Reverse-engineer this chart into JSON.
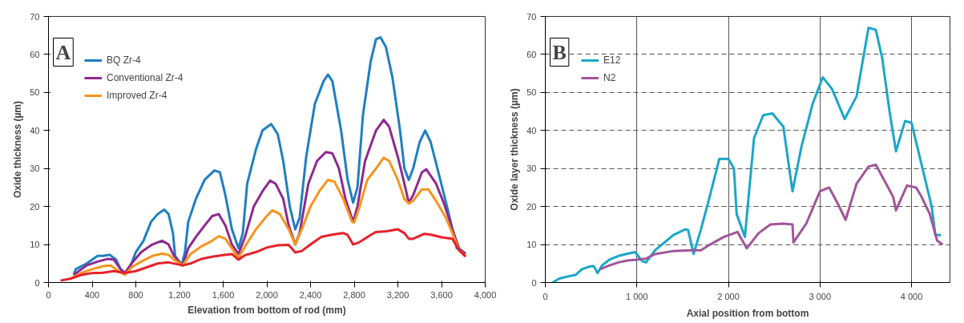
{
  "chart_data": [
    {
      "type": "line",
      "xlabel": "Elevation from bottom of rod (mm)",
      "ylabel": "Oxide thickness (µm)",
      "annotations": [
        "A"
      ],
      "xlim": [
        0,
        4000
      ],
      "ylim": [
        0,
        70
      ],
      "xticks": [
        0,
        {
          "value": 400,
          "label": "400"
        },
        {
          "value": 800,
          "label": "800"
        },
        {
          "value": 1200,
          "label": "1,200"
        },
        {
          "value": 1600,
          "label": "1,600"
        },
        {
          "value": 2000,
          "label": "2,000"
        },
        {
          "value": 2400,
          "label": "2,400"
        },
        {
          "value": 2800,
          "label": "2,800"
        },
        {
          "value": 3200,
          "label": "3,200"
        },
        {
          "value": 3600,
          "label": "3,600"
        },
        {
          "value": 4000,
          "label": "4,000"
        }
      ],
      "yticks": [
        0,
        10,
        20,
        30,
        40,
        50,
        60,
        70
      ],
      "grid": false,
      "legend": "top left",
      "line_style": "solid",
      "series": [
        {
          "name": "BQ Zr-4",
          "color": "#1f7fc0",
          "x": [
            230,
            250,
            350,
            450,
            500,
            560,
            620,
            660,
            700,
            740,
            760,
            800,
            870,
            940,
            1000,
            1060,
            1100,
            1140,
            1160,
            1220,
            1250,
            1280,
            1350,
            1430,
            1520,
            1570,
            1620,
            1680,
            1740,
            1780,
            1820,
            1900,
            1960,
            2040,
            2100,
            2150,
            2210,
            2260,
            2300,
            2360,
            2440,
            2520,
            2560,
            2600,
            2680,
            2740,
            2790,
            2830,
            2880,
            2950,
            3000,
            3040,
            3090,
            3150,
            3220,
            3260,
            3300,
            3340,
            3400,
            3450,
            3500,
            3580,
            3650,
            3700,
            3740,
            3800,
            3820
          ],
          "values": [
            2,
            3.5,
            5,
            7,
            7,
            7.3,
            6,
            3.5,
            2.5,
            3,
            5,
            8,
            11,
            16,
            18,
            19.2,
            18,
            13,
            7,
            4.5,
            8,
            16,
            22,
            27,
            29.5,
            29,
            23,
            14,
            9,
            13,
            26,
            35,
            40,
            41.7,
            39,
            32,
            20,
            14,
            17,
            33,
            47,
            53,
            54.7,
            53,
            40,
            27,
            21,
            25,
            44,
            58,
            64,
            64.5,
            62,
            54,
            40,
            30,
            27,
            30,
            37,
            40,
            37,
            28,
            20,
            14,
            9,
            8,
            7.7
          ]
        },
        {
          "name": "Conventional Zr-4",
          "color": "#8e2a8f",
          "x": [
            230,
            350,
            450,
            540,
            600,
            660,
            700,
            760,
            850,
            950,
            1040,
            1100,
            1150,
            1230,
            1280,
            1350,
            1430,
            1500,
            1560,
            1620,
            1680,
            1740,
            1800,
            1880,
            1960,
            2030,
            2080,
            2150,
            2200,
            2260,
            2300,
            2380,
            2460,
            2540,
            2600,
            2660,
            2720,
            2790,
            2830,
            2900,
            3000,
            3070,
            3120,
            3200,
            3260,
            3300,
            3340,
            3420,
            3460,
            3550,
            3620,
            3700,
            3760,
            3820
          ],
          "values": [
            2,
            4.5,
            5.5,
            6.2,
            6,
            3.5,
            2.5,
            5,
            8,
            10,
            11,
            10,
            7,
            4.5,
            9,
            12,
            15,
            17.5,
            18,
            15,
            10,
            7.5,
            12,
            20,
            24,
            26.8,
            26,
            22,
            15,
            10,
            13,
            26,
            32,
            34.3,
            34,
            30,
            22,
            16,
            20,
            32,
            40,
            42.8,
            41,
            33,
            26,
            21,
            23,
            29,
            29.8,
            26,
            21,
            14,
            9,
            7.5
          ]
        },
        {
          "name": "Improved Zr-4",
          "color": "#f7941d",
          "x": [
            200,
            300,
            400,
            500,
            570,
            640,
            700,
            760,
            850,
            950,
            1040,
            1100,
            1150,
            1230,
            1300,
            1400,
            1500,
            1560,
            1620,
            1680,
            1740,
            1800,
            1900,
            2000,
            2050,
            2120,
            2200,
            2260,
            2320,
            2400,
            2480,
            2560,
            2620,
            2700,
            2780,
            2800,
            2850,
            2920,
            3000,
            3070,
            3120,
            3200,
            3260,
            3300,
            3340,
            3420,
            3480,
            3560,
            3640,
            3700,
            3760,
            3820
          ],
          "values": [
            1,
            2.5,
            3.5,
            4.3,
            4.5,
            3,
            2,
            4,
            5.5,
            7,
            7.6,
            7.3,
            6,
            4.5,
            7.5,
            9.5,
            11,
            12.2,
            11.5,
            9,
            6.5,
            9.5,
            14,
            17.5,
            19,
            18,
            14,
            10,
            14,
            20,
            24,
            27,
            26.5,
            22,
            16,
            15.8,
            20,
            27,
            30,
            32.8,
            32,
            27,
            22,
            20.8,
            21.5,
            24.5,
            24.5,
            21,
            17,
            13,
            8.5,
            7
          ]
        },
        {
          "color": "#e8222a",
          "x": [
            110,
            200,
            300,
            400,
            500,
            600,
            700,
            800,
            900,
            1000,
            1100,
            1230,
            1300,
            1400,
            1500,
            1600,
            1680,
            1740,
            1800,
            1900,
            2000,
            2100,
            2200,
            2260,
            2320,
            2400,
            2500,
            2600,
            2700,
            2740,
            2790,
            2840,
            2950,
            3000,
            3100,
            3200,
            3260,
            3300,
            3340,
            3440,
            3500,
            3600,
            3700,
            3760,
            3820
          ],
          "values": [
            0.5,
            1,
            2,
            2.5,
            2.6,
            3,
            2.5,
            3,
            4,
            5,
            5.3,
            4.5,
            5,
            6.2,
            6.8,
            7.2,
            7.5,
            6,
            7.2,
            8,
            9.2,
            9.8,
            9.9,
            7.9,
            8.3,
            10,
            12,
            12.6,
            13,
            12.5,
            10,
            10.5,
            12.5,
            13.3,
            13.5,
            14,
            13,
            11.5,
            11.5,
            12.8,
            12.6,
            11.9,
            11.5,
            8.5,
            6.8
          ]
        }
      ]
    },
    {
      "type": "line",
      "xlabel": "Axial position from bottom",
      "ylabel": "Oxide layer thickness (µm)",
      "annotations": [
        "B"
      ],
      "xlim": [
        0,
        4420
      ],
      "ylim": [
        0,
        70
      ],
      "xticks": [
        0,
        {
          "value": 1000,
          "label": "1 000"
        },
        {
          "value": 2000,
          "label": "2 000"
        },
        {
          "value": 3000,
          "label": "3 000"
        },
        {
          "value": 4000,
          "label": "4 000"
        }
      ],
      "yticks": [
        0,
        10,
        20,
        30,
        40,
        50,
        60,
        70
      ],
      "grid": true,
      "legend": "top left",
      "line_style": "solid",
      "series": [
        {
          "name": "E12",
          "color": "#1aa7c8",
          "x": [
            80,
            150,
            230,
            330,
            400,
            480,
            530,
            570,
            620,
            700,
            800,
            900,
            980,
            1060,
            1100,
            1200,
            1300,
            1400,
            1530,
            1560,
            1620,
            1700,
            1800,
            1900,
            2000,
            2060,
            2090,
            2180,
            2280,
            2380,
            2480,
            2600,
            2700,
            2800,
            2920,
            3030,
            3130,
            3270,
            3400,
            3530,
            3610,
            3680,
            3760,
            3830,
            3930,
            4000,
            4100,
            4220,
            4260,
            4320
          ],
          "values": [
            0,
            1,
            1.5,
            2,
            3.5,
            4.2,
            4.3,
            2.5,
            4.5,
            6,
            7,
            7.6,
            8,
            5.6,
            5.3,
            8.5,
            10.5,
            12.5,
            14,
            13.8,
            7.5,
            14,
            23,
            32.5,
            32.5,
            30,
            18,
            12,
            38,
            44,
            44.5,
            41,
            24,
            36,
            47,
            54,
            51,
            43,
            49,
            67,
            66.5,
            59,
            45,
            34.5,
            42.5,
            42,
            32,
            20,
            12.5,
            12.5
          ]
        },
        {
          "name": "N2",
          "color": "#a0559a",
          "x": [
            600,
            700,
            800,
            900,
            1000,
            1100,
            1200,
            1400,
            1600,
            1700,
            1800,
            1950,
            2100,
            2200,
            2330,
            2460,
            2600,
            2700,
            2710,
            2850,
            3000,
            3100,
            3200,
            3280,
            3400,
            3530,
            3610,
            3700,
            3800,
            3830,
            3950,
            4050,
            4100,
            4200,
            4280,
            4340
          ],
          "values": [
            3.5,
            4.5,
            5.3,
            5.8,
            6,
            6.3,
            7.5,
            8.3,
            8.5,
            8.5,
            10,
            12,
            13.3,
            9,
            13,
            15.3,
            15.5,
            15.3,
            10.5,
            15.5,
            24,
            25,
            20.5,
            16.5,
            26,
            30.5,
            31,
            27,
            22.5,
            19,
            25.5,
            25,
            23,
            18,
            11,
            10
          ]
        }
      ]
    }
  ]
}
